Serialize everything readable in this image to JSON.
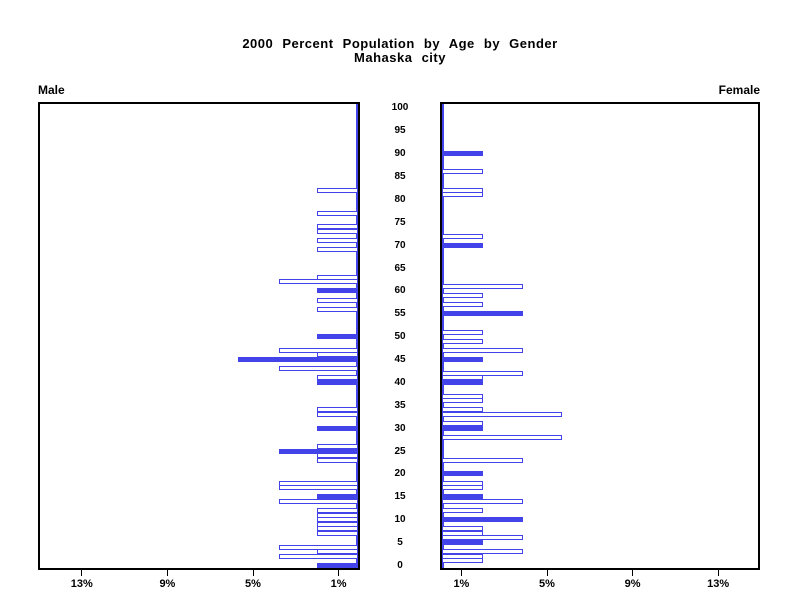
{
  "title": {
    "line1": "2000 Percent Population by Age by Gender",
    "line2": "Mahaska city"
  },
  "panel_labels": {
    "left": "Male",
    "right": "Female"
  },
  "colors": {
    "bar_blue": "#4343ea",
    "axis_black": "#000000",
    "background": "#ffffff"
  },
  "chart_data": {
    "type": "bar",
    "subtype": "population-pyramid",
    "title": "2000 Percent Population by Age by Gender",
    "subtitle": "Mahaska city",
    "legend_position": "none",
    "grid": false,
    "x_axis": {
      "unit": "%",
      "max_pct": 15,
      "ticks": [
        1,
        5,
        9,
        13
      ],
      "male_tick_labels": [
        "13%",
        "9%",
        "5%",
        "1%"
      ],
      "female_tick_labels": [
        "1%",
        "5%",
        "9%",
        "13%"
      ]
    },
    "age_axis": {
      "min": 0,
      "max": 100,
      "step": 5,
      "tick_labels": [
        "0",
        "5",
        "10",
        "15",
        "20",
        "25",
        "30",
        "35",
        "40",
        "45",
        "50",
        "55",
        "60",
        "65",
        "70",
        "75",
        "80",
        "85",
        "90",
        "95",
        "100"
      ]
    },
    "male_bars": [
      {
        "age": 82,
        "pct": 1.9,
        "fill": "outline"
      },
      {
        "age": 77,
        "pct": 1.9,
        "fill": "outline"
      },
      {
        "age": 74,
        "pct": 1.9,
        "fill": "outline"
      },
      {
        "age": 73,
        "pct": 1.9,
        "fill": "outline"
      },
      {
        "age": 71,
        "pct": 1.9,
        "fill": "outline"
      },
      {
        "age": 69,
        "pct": 1.9,
        "fill": "outline"
      },
      {
        "age": 63,
        "pct": 1.9,
        "fill": "outline"
      },
      {
        "age": 62,
        "pct": 3.7,
        "fill": "outline"
      },
      {
        "age": 60,
        "pct": 1.9,
        "fill": "solid"
      },
      {
        "age": 58,
        "pct": 1.9,
        "fill": "outline"
      },
      {
        "age": 56,
        "pct": 1.9,
        "fill": "outline"
      },
      {
        "age": 50,
        "pct": 1.9,
        "fill": "solid"
      },
      {
        "age": 47,
        "pct": 3.7,
        "fill": "outline"
      },
      {
        "age": 46,
        "pct": 1.9,
        "fill": "outline"
      },
      {
        "age": 45,
        "pct": 5.6,
        "fill": "solid"
      },
      {
        "age": 43,
        "pct": 3.7,
        "fill": "outline"
      },
      {
        "age": 41,
        "pct": 1.9,
        "fill": "outline"
      },
      {
        "age": 40,
        "pct": 1.9,
        "fill": "solid"
      },
      {
        "age": 34,
        "pct": 1.9,
        "fill": "outline"
      },
      {
        "age": 33,
        "pct": 1.9,
        "fill": "outline"
      },
      {
        "age": 30,
        "pct": 1.9,
        "fill": "solid"
      },
      {
        "age": 26,
        "pct": 1.9,
        "fill": "outline"
      },
      {
        "age": 25,
        "pct": 3.7,
        "fill": "solid"
      },
      {
        "age": 24,
        "pct": 1.9,
        "fill": "outline"
      },
      {
        "age": 23,
        "pct": 1.9,
        "fill": "outline"
      },
      {
        "age": 18,
        "pct": 3.7,
        "fill": "outline"
      },
      {
        "age": 17,
        "pct": 3.7,
        "fill": "outline"
      },
      {
        "age": 15,
        "pct": 1.9,
        "fill": "solid"
      },
      {
        "age": 14,
        "pct": 3.7,
        "fill": "outline"
      },
      {
        "age": 12,
        "pct": 1.9,
        "fill": "outline"
      },
      {
        "age": 11,
        "pct": 1.9,
        "fill": "outline"
      },
      {
        "age": 10,
        "pct": 1.9,
        "fill": "outline"
      },
      {
        "age": 9,
        "pct": 1.9,
        "fill": "outline"
      },
      {
        "age": 8,
        "pct": 1.9,
        "fill": "outline"
      },
      {
        "age": 7,
        "pct": 1.9,
        "fill": "outline"
      },
      {
        "age": 4,
        "pct": 3.7,
        "fill": "outline"
      },
      {
        "age": 3,
        "pct": 1.9,
        "fill": "outline"
      },
      {
        "age": 2,
        "pct": 3.7,
        "fill": "outline"
      },
      {
        "age": 0,
        "pct": 1.9,
        "fill": "solid"
      }
    ],
    "female_bars": [
      {
        "age": 90,
        "pct": 1.9,
        "fill": "solid"
      },
      {
        "age": 86,
        "pct": 1.9,
        "fill": "outline"
      },
      {
        "age": 82,
        "pct": 1.9,
        "fill": "outline"
      },
      {
        "age": 81,
        "pct": 1.9,
        "fill": "outline"
      },
      {
        "age": 72,
        "pct": 1.9,
        "fill": "outline"
      },
      {
        "age": 70,
        "pct": 1.9,
        "fill": "solid"
      },
      {
        "age": 61,
        "pct": 3.8,
        "fill": "outline"
      },
      {
        "age": 59,
        "pct": 1.9,
        "fill": "outline"
      },
      {
        "age": 57,
        "pct": 1.9,
        "fill": "outline"
      },
      {
        "age": 55,
        "pct": 3.8,
        "fill": "solid"
      },
      {
        "age": 51,
        "pct": 1.9,
        "fill": "outline"
      },
      {
        "age": 49,
        "pct": 1.9,
        "fill": "outline"
      },
      {
        "age": 47,
        "pct": 3.8,
        "fill": "outline"
      },
      {
        "age": 45,
        "pct": 1.9,
        "fill": "solid"
      },
      {
        "age": 42,
        "pct": 3.8,
        "fill": "outline"
      },
      {
        "age": 41,
        "pct": 1.9,
        "fill": "outline"
      },
      {
        "age": 40,
        "pct": 1.9,
        "fill": "solid"
      },
      {
        "age": 37,
        "pct": 1.9,
        "fill": "outline"
      },
      {
        "age": 36,
        "pct": 1.9,
        "fill": "outline"
      },
      {
        "age": 34,
        "pct": 1.9,
        "fill": "outline"
      },
      {
        "age": 33,
        "pct": 5.6,
        "fill": "outline"
      },
      {
        "age": 31,
        "pct": 1.9,
        "fill": "outline"
      },
      {
        "age": 30,
        "pct": 1.9,
        "fill": "solid"
      },
      {
        "age": 28,
        "pct": 5.6,
        "fill": "outline"
      },
      {
        "age": 23,
        "pct": 3.8,
        "fill": "outline"
      },
      {
        "age": 20,
        "pct": 1.9,
        "fill": "solid"
      },
      {
        "age": 18,
        "pct": 1.9,
        "fill": "outline"
      },
      {
        "age": 17,
        "pct": 1.9,
        "fill": "outline"
      },
      {
        "age": 15,
        "pct": 1.9,
        "fill": "solid"
      },
      {
        "age": 14,
        "pct": 3.8,
        "fill": "outline"
      },
      {
        "age": 12,
        "pct": 1.9,
        "fill": "outline"
      },
      {
        "age": 10,
        "pct": 3.8,
        "fill": "solid"
      },
      {
        "age": 8,
        "pct": 1.9,
        "fill": "outline"
      },
      {
        "age": 7,
        "pct": 1.9,
        "fill": "outline"
      },
      {
        "age": 6,
        "pct": 3.8,
        "fill": "outline"
      },
      {
        "age": 5,
        "pct": 1.9,
        "fill": "solid"
      },
      {
        "age": 3,
        "pct": 3.8,
        "fill": "outline"
      },
      {
        "age": 2,
        "pct": 1.9,
        "fill": "outline"
      },
      {
        "age": 1,
        "pct": 1.9,
        "fill": "outline"
      }
    ]
  }
}
